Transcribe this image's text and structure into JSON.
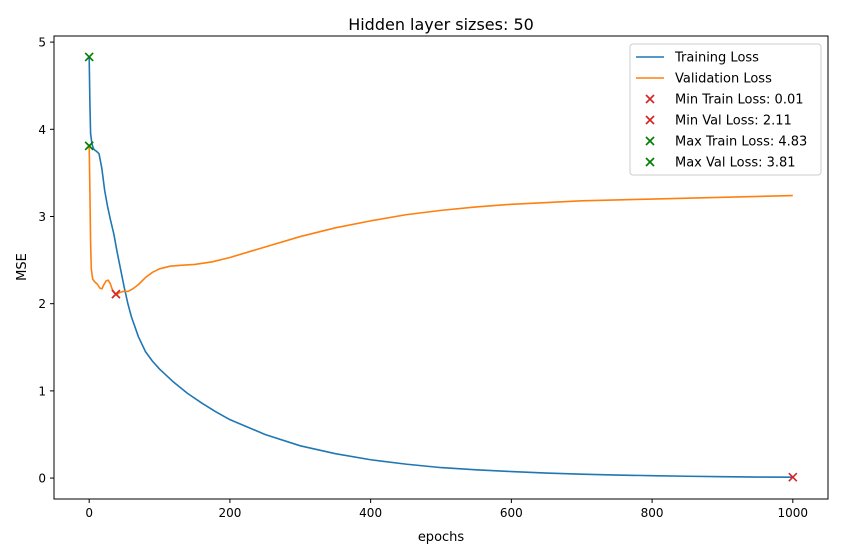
{
  "chart_data": {
    "type": "line",
    "title": "Hidden layer sizses: 50",
    "xlabel": "epochs",
    "ylabel": "MSE",
    "xlim": [
      -50,
      1050
    ],
    "ylim": [
      -0.24,
      5.07
    ],
    "xticks": [
      0,
      200,
      400,
      600,
      800,
      1000
    ],
    "yticks": [
      0,
      1,
      2,
      3,
      4,
      5
    ],
    "grid": false,
    "legend_position": "top-right",
    "series": [
      {
        "name": "Training Loss",
        "color": "#1f77b4",
        "points": [
          [
            0,
            4.83
          ],
          [
            1,
            4.3
          ],
          [
            2,
            3.95
          ],
          [
            4,
            3.83
          ],
          [
            6,
            3.78
          ],
          [
            8,
            3.76
          ],
          [
            10,
            3.75
          ],
          [
            14,
            3.72
          ],
          [
            18,
            3.55
          ],
          [
            22,
            3.3
          ],
          [
            26,
            3.12
          ],
          [
            30,
            2.97
          ],
          [
            35,
            2.8
          ],
          [
            40,
            2.58
          ],
          [
            45,
            2.38
          ],
          [
            50,
            2.18
          ],
          [
            55,
            2.0
          ],
          [
            60,
            1.85
          ],
          [
            70,
            1.62
          ],
          [
            80,
            1.45
          ],
          [
            90,
            1.34
          ],
          [
            100,
            1.25
          ],
          [
            120,
            1.1
          ],
          [
            140,
            0.97
          ],
          [
            160,
            0.86
          ],
          [
            180,
            0.76
          ],
          [
            200,
            0.67
          ],
          [
            250,
            0.5
          ],
          [
            300,
            0.37
          ],
          [
            350,
            0.28
          ],
          [
            400,
            0.21
          ],
          [
            450,
            0.16
          ],
          [
            500,
            0.12
          ],
          [
            550,
            0.095
          ],
          [
            600,
            0.075
          ],
          [
            650,
            0.058
          ],
          [
            700,
            0.045
          ],
          [
            750,
            0.035
          ],
          [
            800,
            0.027
          ],
          [
            850,
            0.021
          ],
          [
            900,
            0.016
          ],
          [
            950,
            0.012
          ],
          [
            1000,
            0.01
          ]
        ]
      },
      {
        "name": "Validation Loss",
        "color": "#ff7f0e",
        "points": [
          [
            0,
            3.81
          ],
          [
            1,
            3.3
          ],
          [
            2,
            2.7
          ],
          [
            3,
            2.4
          ],
          [
            5,
            2.28
          ],
          [
            8,
            2.25
          ],
          [
            12,
            2.22
          ],
          [
            15,
            2.18
          ],
          [
            18,
            2.17
          ],
          [
            21,
            2.22
          ],
          [
            24,
            2.26
          ],
          [
            27,
            2.27
          ],
          [
            30,
            2.23
          ],
          [
            33,
            2.16
          ],
          [
            36,
            2.12
          ],
          [
            40,
            2.11
          ],
          [
            44,
            2.13
          ],
          [
            48,
            2.14
          ],
          [
            55,
            2.14
          ],
          [
            62,
            2.17
          ],
          [
            70,
            2.22
          ],
          [
            80,
            2.3
          ],
          [
            90,
            2.36
          ],
          [
            100,
            2.4
          ],
          [
            115,
            2.43
          ],
          [
            130,
            2.44
          ],
          [
            150,
            2.45
          ],
          [
            175,
            2.48
          ],
          [
            200,
            2.53
          ],
          [
            250,
            2.65
          ],
          [
            300,
            2.77
          ],
          [
            350,
            2.87
          ],
          [
            400,
            2.95
          ],
          [
            450,
            3.02
          ],
          [
            500,
            3.07
          ],
          [
            550,
            3.11
          ],
          [
            600,
            3.14
          ],
          [
            650,
            3.16
          ],
          [
            700,
            3.18
          ],
          [
            750,
            3.19
          ],
          [
            800,
            3.2
          ],
          [
            850,
            3.21
          ],
          [
            900,
            3.22
          ],
          [
            950,
            3.23
          ],
          [
            1000,
            3.24
          ]
        ]
      }
    ],
    "markers": [
      {
        "name": "Min Train Loss: 0.01",
        "x": 1000,
        "y": 0.01,
        "color": "#d62728",
        "shape": "x"
      },
      {
        "name": "Min Val Loss: 2.11",
        "x": 38,
        "y": 2.11,
        "color": "#d62728",
        "shape": "x"
      },
      {
        "name": "Max Train Loss: 4.83",
        "x": 0,
        "y": 4.83,
        "color": "#008000",
        "shape": "x"
      },
      {
        "name": "Max Val Loss: 3.81",
        "x": 0,
        "y": 3.81,
        "color": "#008000",
        "shape": "x"
      }
    ]
  }
}
